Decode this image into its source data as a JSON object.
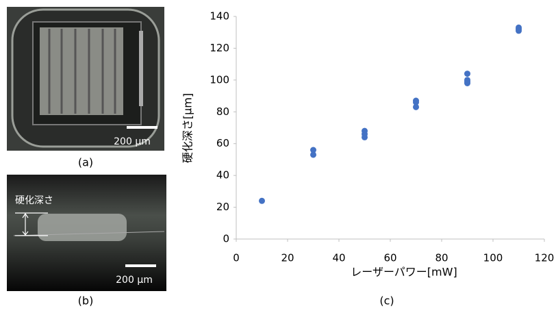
{
  "panels": {
    "a": {
      "label": "(a)",
      "scale": "200 μm"
    },
    "b": {
      "label": "(b)",
      "scale": "200 μm",
      "annotation": "硬化深さ"
    },
    "c": {
      "label": "(c)"
    }
  },
  "chart_data": {
    "type": "scatter",
    "x": [
      10,
      30,
      30,
      50,
      50,
      50,
      70,
      70,
      70,
      90,
      90,
      90,
      90,
      110,
      110,
      110
    ],
    "values": [
      24,
      53,
      56,
      64,
      66,
      68,
      83,
      86,
      87,
      98,
      99,
      100,
      104,
      131,
      132,
      133
    ],
    "color": "#4472c4",
    "xlabel": "レーザーパワー[mW]",
    "ylabel": "硬化深さ[μm]",
    "xlim": [
      0,
      120
    ],
    "ylim": [
      0,
      140
    ],
    "xticks": [
      0,
      20,
      40,
      60,
      80,
      100,
      120
    ],
    "yticks": [
      0,
      20,
      40,
      60,
      80,
      100,
      120,
      140
    ]
  }
}
